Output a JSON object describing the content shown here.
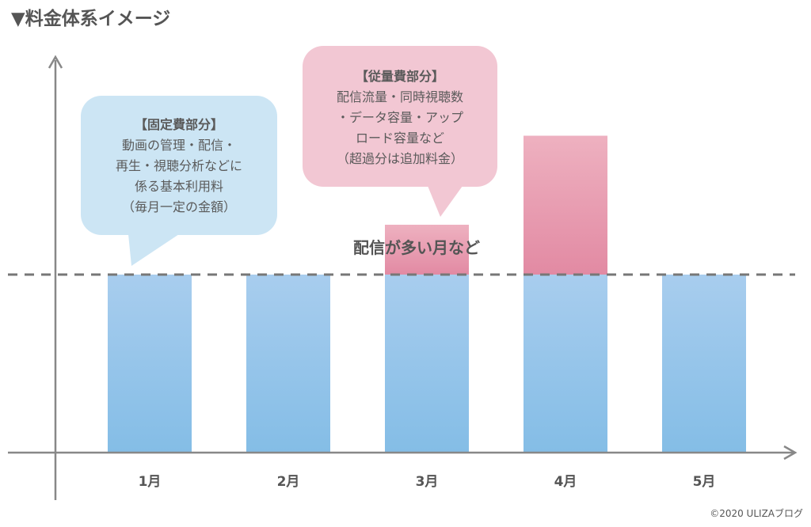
{
  "page": {
    "title": "▼料金体系イメージ",
    "copyright": "©2020 ULIZAブログ"
  },
  "callouts": {
    "fixed": {
      "title": "【固定費部分】",
      "lines": [
        "動画の管理・配信・",
        "再生・視聴分析などに",
        "係る基本利用料",
        "（毎月一定の金額）"
      ]
    },
    "variable": {
      "title": "【従量費部分】",
      "lines": [
        "配信流量・同時視聴数",
        "・データ容量・アップ",
        "ロード容量など",
        "（超過分は追加料金）"
      ]
    },
    "spike_note": "配信が多い月など"
  },
  "chart_data": {
    "type": "bar",
    "stacked": true,
    "categories": [
      "1月",
      "2月",
      "3月",
      "4月",
      "5月"
    ],
    "series": [
      {
        "values": [
          1,
          1,
          1,
          1,
          1
        ],
        "color": "#a8cdee"
      },
      {
        "values": [
          0,
          0,
          0.28,
          0.78,
          0
        ],
        "color": "#e892a9"
      }
    ],
    "reference_line": {
      "value": 1,
      "style": "dashed"
    },
    "ylim": [
      0,
      2.25
    ],
    "xlabel": "",
    "ylabel": "",
    "colors": {
      "axis": "#888888",
      "dashed_line": "#777777",
      "fixed_top": "#a8cdee",
      "fixed_bottom": "#84bde6",
      "variable_top": "#eeb1c0",
      "variable_bottom": "#e28aa3"
    }
  }
}
